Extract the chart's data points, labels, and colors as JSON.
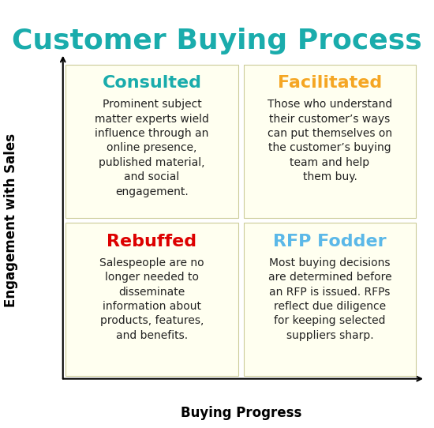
{
  "title": "Customer Buying Process",
  "title_color": "#1aacac",
  "title_fontsize": 26,
  "title_fontweight": "bold",
  "bg_color": "#ffffff",
  "box_bg_color": "#fffff0",
  "box_edge_color": "#cccc99",
  "axis_label_x": "Buying Progress",
  "axis_label_y": "Engagement with Sales",
  "axis_label_fontsize": 12,
  "axis_label_fontweight": "bold",
  "quadrants": [
    {
      "label": "Consulted",
      "label_color": "#1aacac",
      "label_fontsize": 16,
      "label_fontweight": "bold",
      "body": "Prominent subject\nmatter experts wield\ninfluence through an\nonline presence,\npublished material,\nand social\nengagement.",
      "body_color": "#222222",
      "body_fontsize": 10,
      "col": 0,
      "row": 1
    },
    {
      "label": "Facilitated",
      "label_color": "#f5a623",
      "label_fontsize": 16,
      "label_fontweight": "bold",
      "body": "Those who understand\ntheir customer’s ways\ncan put themselves on\nthe customer’s buying\nteam and help\nthem buy.",
      "body_color": "#222222",
      "body_fontsize": 10,
      "col": 1,
      "row": 1
    },
    {
      "label": "Rebuffed",
      "label_color": "#dd0000",
      "label_fontsize": 16,
      "label_fontweight": "bold",
      "body": "Salespeople are no\nlonger needed to\ndisseminate\ninformation about\nproducts, features,\nand benefits.",
      "body_color": "#222222",
      "body_fontsize": 10,
      "col": 0,
      "row": 0
    },
    {
      "label": "RFP Fodder",
      "label_color": "#5bb8e8",
      "label_fontsize": 16,
      "label_fontweight": "bold",
      "body": "Most buying decisions\nare determined before\nan RFP is issued. RFPs\nreflect due diligence\nfor keeping selected\nsuppliers sharp.",
      "body_color": "#222222",
      "body_fontsize": 10,
      "col": 1,
      "row": 0
    }
  ]
}
